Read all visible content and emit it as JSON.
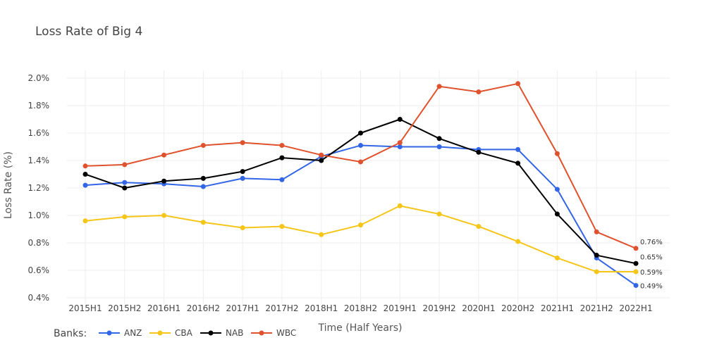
{
  "chart_data": {
    "type": "line",
    "title": "Loss Rate of Big 4",
    "xlabel": "Time (Half Years)",
    "ylabel": "Loss Rate (%)",
    "categories": [
      "2015H1",
      "2015H2",
      "2016H1",
      "2016H2",
      "2017H1",
      "2017H2",
      "2018H1",
      "2018H2",
      "2019H1",
      "2019H2",
      "2020H1",
      "2020H2",
      "2021H1",
      "2021H2",
      "2022H1"
    ],
    "ylim": [
      0.4,
      2.05
    ],
    "yticks": [
      {
        "value": 0.4,
        "label": "0.4%"
      },
      {
        "value": 0.6,
        "label": "0.6%"
      },
      {
        "value": 0.8,
        "label": "0.8%"
      },
      {
        "value": 1.0,
        "label": "1.0%"
      },
      {
        "value": 1.2,
        "label": "1.2%"
      },
      {
        "value": 1.4,
        "label": "1.4%"
      },
      {
        "value": 1.6,
        "label": "1.6%"
      },
      {
        "value": 1.8,
        "label": "1.8%"
      },
      {
        "value": 2.0,
        "label": "2.0%"
      }
    ],
    "grid": true,
    "legend": {
      "title": "Banks:",
      "placement": "bottom-left"
    },
    "series": [
      {
        "name": "ANZ",
        "color": "#3366e6",
        "end_label": "0.49%",
        "values": [
          1.22,
          1.24,
          1.23,
          1.21,
          1.27,
          1.26,
          1.43,
          1.51,
          1.5,
          1.5,
          1.48,
          1.48,
          1.19,
          0.69,
          0.49
        ]
      },
      {
        "name": "CBA",
        "color": "#f5c518",
        "end_label": "0.59%",
        "values": [
          0.96,
          0.99,
          1.0,
          0.95,
          0.91,
          0.92,
          0.86,
          0.93,
          1.07,
          1.01,
          0.92,
          0.81,
          0.69,
          0.59,
          0.59
        ]
      },
      {
        "name": "NAB",
        "color": "#000000",
        "end_label": "0.65%",
        "values": [
          1.3,
          1.2,
          1.25,
          1.27,
          1.32,
          1.42,
          1.4,
          1.6,
          1.7,
          1.56,
          1.46,
          1.38,
          1.01,
          0.71,
          0.65
        ]
      },
      {
        "name": "WBC",
        "color": "#e0522d",
        "end_label": "0.76%",
        "values": [
          1.36,
          1.37,
          1.44,
          1.51,
          1.53,
          1.51,
          1.44,
          1.39,
          1.53,
          1.94,
          1.9,
          1.96,
          1.45,
          0.88,
          0.76
        ]
      }
    ]
  }
}
